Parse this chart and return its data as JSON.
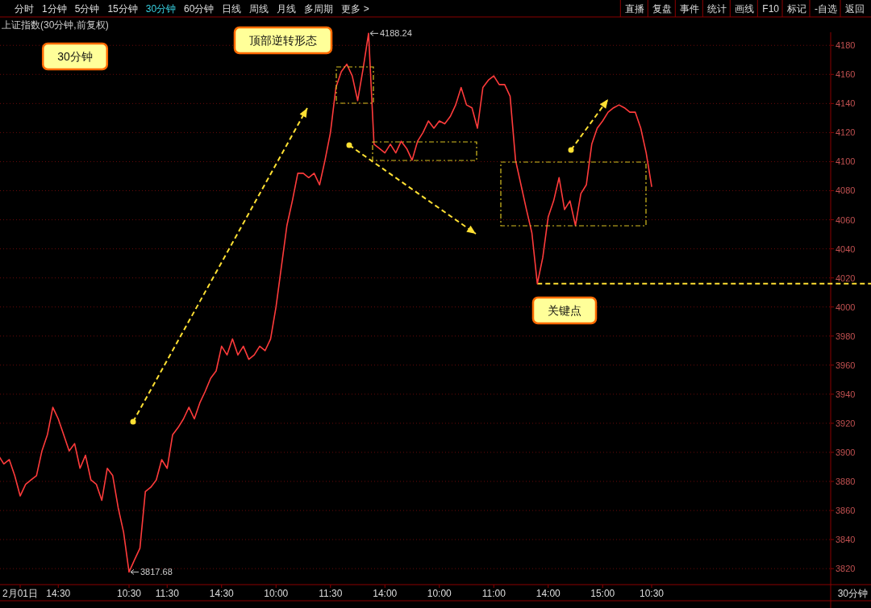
{
  "chart_data": {
    "type": "line",
    "title": "上证指数(30分钟,前复权)",
    "categories": [
      null,
      null,
      null,
      null,
      "2月01日",
      null,
      null,
      null,
      null,
      null,
      null,
      "14:30",
      null,
      null,
      null,
      null,
      null,
      null,
      null,
      null,
      null,
      null,
      null,
      null,
      "10:30",
      null,
      null,
      null,
      null,
      null,
      null,
      "11:30",
      null,
      null,
      null,
      null,
      null,
      null,
      null,
      null,
      null,
      "14:30",
      null,
      null,
      null,
      null,
      null,
      null,
      null,
      null,
      null,
      "10:00",
      null,
      null,
      null,
      null,
      null,
      null,
      null,
      null,
      null,
      "11:30",
      null,
      null,
      null,
      null,
      null,
      null,
      null,
      null,
      null,
      "14:00",
      null,
      null,
      null,
      null,
      null,
      null,
      null,
      null,
      null,
      "10:00",
      null,
      null,
      null,
      null,
      null,
      null,
      null,
      null,
      null,
      "11:00",
      null,
      null,
      null,
      null,
      null,
      null,
      null,
      null,
      null,
      "14:00",
      null,
      null,
      null,
      null,
      null,
      null,
      null,
      null,
      null,
      "15:00",
      null,
      null,
      null,
      null,
      null,
      null,
      null,
      null,
      "10:30"
    ],
    "series": [
      {
        "color": "#ff3b3b",
        "values": [
          3898,
          3892,
          3895,
          3884,
          3870,
          3878,
          3881,
          3884,
          3901,
          3912,
          3931,
          3923,
          3912,
          3901,
          3906,
          3889,
          3898,
          3881,
          3878,
          3867,
          3889,
          3884,
          3862,
          3845,
          3817.68,
          3826,
          3834,
          3873,
          3876,
          3881,
          3895,
          3889,
          3912,
          3917,
          3923,
          3931,
          3923,
          3934,
          3942,
          3951,
          3956,
          3973,
          3967,
          3978,
          3967,
          3973,
          3964,
          3967,
          3973,
          3970,
          3978,
          4000,
          4028,
          4056,
          4073,
          4092,
          4092,
          4089,
          4092,
          4084,
          4101,
          4120,
          4151,
          4162,
          4167,
          4159,
          4142,
          4164,
          4188.24,
          4112,
          4109,
          4106,
          4112,
          4106,
          4114,
          4109,
          4101,
          4114,
          4120,
          4128,
          4123,
          4128,
          4126,
          4131,
          4139,
          4151,
          4139,
          4137,
          4123,
          4151,
          4156,
          4159,
          4153,
          4153,
          4145,
          4101,
          4084,
          4067,
          4051,
          4016,
          4034,
          4062,
          4073,
          4089,
          4067,
          4073,
          4056,
          4078,
          4084,
          4112,
          4123,
          4128,
          4134,
          4137,
          4139,
          4137,
          4134,
          4134,
          4123,
          4106,
          4083
        ]
      }
    ],
    "ylim": [
      3809,
      4189
    ],
    "yticks": [
      3820,
      3840,
      3860,
      3880,
      3900,
      3920,
      3940,
      3960,
      3980,
      4000,
      4020,
      4040,
      4060,
      4080,
      4100,
      4120,
      4140,
      4160,
      4180
    ],
    "grid": "y",
    "ref_lines": [
      {
        "axis": "y",
        "value": 4016,
        "color": "#ffe033",
        "line_style": "dashed"
      }
    ],
    "annotations": [
      "30分钟",
      "顶部逆转形态",
      "关键点",
      "4188.24",
      "3817.68",
      "30分钟",
      "分时",
      "1分钟",
      "5分钟",
      "15分钟",
      "30分钟",
      "60分钟",
      "日线",
      "周线",
      "月线",
      "多周期",
      "更多 >",
      "直播",
      "复盘",
      "事件",
      "统计",
      "画线",
      "F10",
      "标记",
      "-自选",
      "返回"
    ]
  }
}
